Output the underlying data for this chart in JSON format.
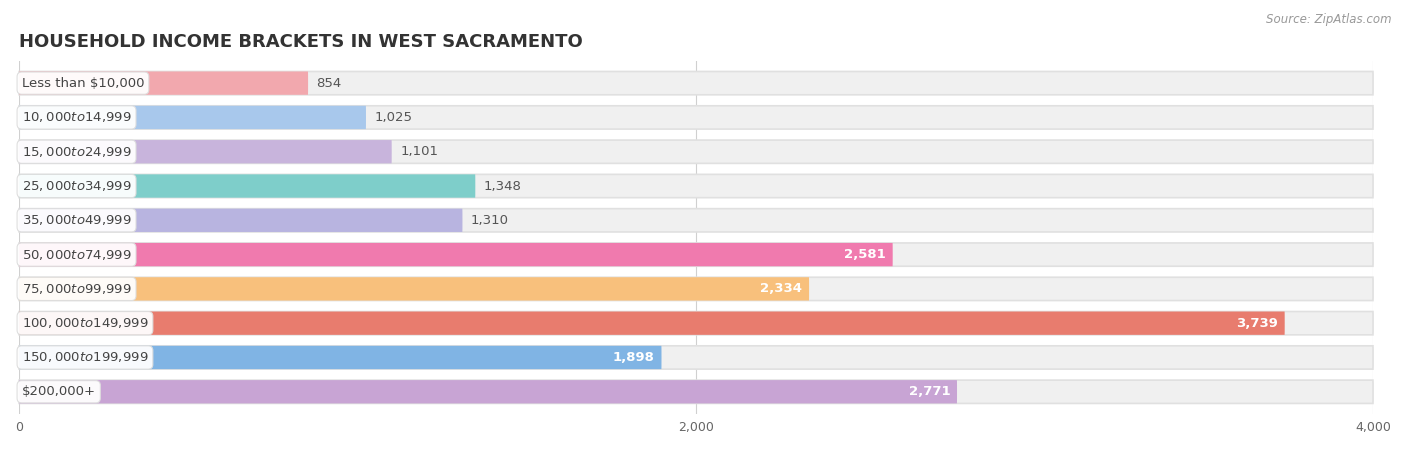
{
  "title": "HOUSEHOLD INCOME BRACKETS IN WEST SACRAMENTO",
  "source": "Source: ZipAtlas.com",
  "categories": [
    "Less than $10,000",
    "$10,000 to $14,999",
    "$15,000 to $24,999",
    "$25,000 to $34,999",
    "$35,000 to $49,999",
    "$50,000 to $74,999",
    "$75,000 to $99,999",
    "$100,000 to $149,999",
    "$150,000 to $199,999",
    "$200,000+"
  ],
  "values": [
    854,
    1025,
    1101,
    1348,
    1310,
    2581,
    2334,
    3739,
    1898,
    2771
  ],
  "bar_colors": [
    "#F2A8AE",
    "#A8C8EC",
    "#C8B4DC",
    "#7ECECA",
    "#B8B4E0",
    "#F07AAE",
    "#F8C07C",
    "#E87C6E",
    "#80B4E4",
    "#C8A4D4"
  ],
  "background_color": "#ffffff",
  "bar_bg_color": "#f0f0f0",
  "bar_bg_border": "#e0e0e0",
  "xlim": [
    0,
    4000
  ],
  "xticks": [
    0,
    2000,
    4000
  ],
  "title_fontsize": 13,
  "label_fontsize": 9.5,
  "value_fontsize": 9.5,
  "value_inside_threshold": 1500,
  "value_inside_color": "#ffffff",
  "value_outside_color": "#555555"
}
